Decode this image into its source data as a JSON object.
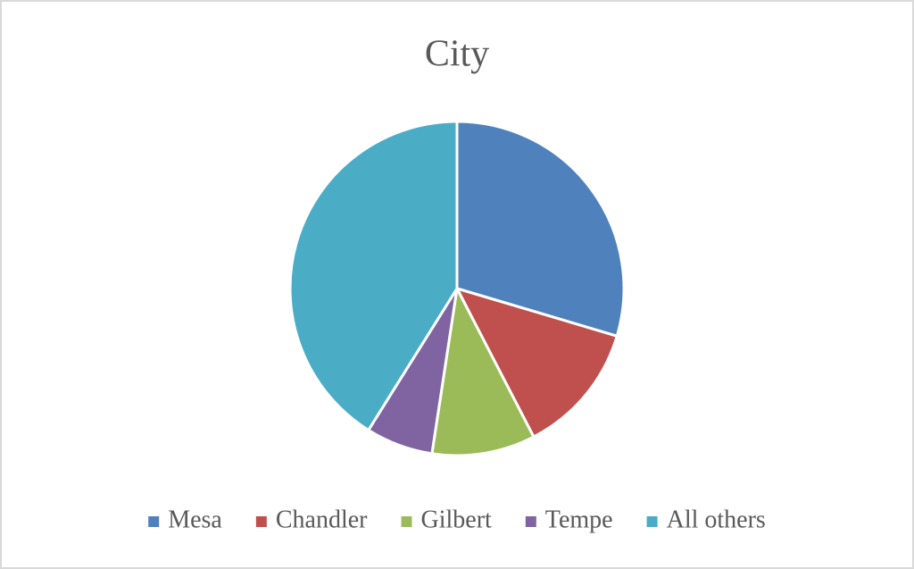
{
  "chart_data": {
    "type": "pie",
    "title": "City",
    "categories": [
      "Mesa",
      "Chandler",
      "Gilbert",
      "Tempe",
      "All others"
    ],
    "values": [
      29.6,
      12.8,
      10,
      6.5,
      41.1
    ],
    "colors": [
      "#4f81bd",
      "#c0504d",
      "#9bbb59",
      "#8064a2",
      "#4bacc6"
    ],
    "legend": "bottom"
  }
}
